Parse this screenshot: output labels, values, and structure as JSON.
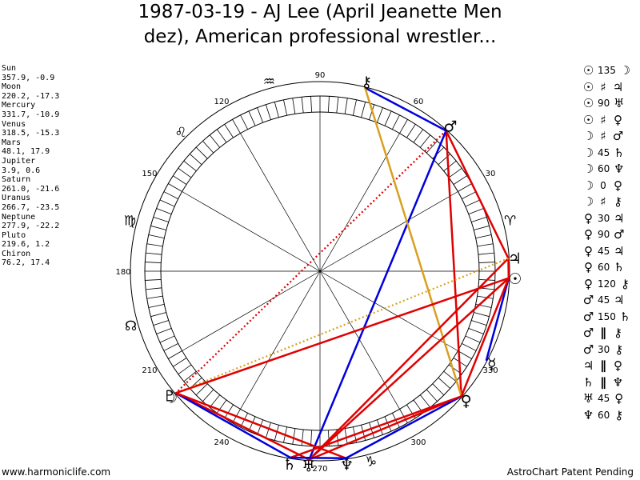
{
  "header": {
    "title_line1": "1987-03-19 - AJ Lee (April Jeanette Men",
    "title_line2": "dez), American professional wrestler..."
  },
  "planets": [
    {
      "name": "Sun",
      "coords": "357.9, -0.9",
      "glyph": "☉",
      "lon": 357.9
    },
    {
      "name": "Moon",
      "coords": "220.2, -17.3",
      "glyph": "☽",
      "lon": 220.2
    },
    {
      "name": "Mercury",
      "coords": "331.7, -10.9",
      "glyph": "☿",
      "lon": 331.7
    },
    {
      "name": "Venus",
      "coords": "318.5, -15.3",
      "glyph": "♀",
      "lon": 318.5
    },
    {
      "name": "Mars",
      "coords": "48.1, 17.9",
      "glyph": "♂",
      "lon": 48.1
    },
    {
      "name": "Jupiter",
      "coords": "3.9, 0.6",
      "glyph": "♃",
      "lon": 3.9
    },
    {
      "name": "Saturn",
      "coords": "261.0, -21.6",
      "glyph": "♄",
      "lon": 261.0
    },
    {
      "name": "Uranus",
      "coords": "266.7, -23.5",
      "glyph": "♅",
      "lon": 266.7
    },
    {
      "name": "Neptune",
      "coords": "277.9, -22.2",
      "glyph": "♆",
      "lon": 277.9
    },
    {
      "name": "Pluto",
      "coords": "219.6, 1.2",
      "glyph": "♇",
      "lon": 219.6
    },
    {
      "name": "Chiron",
      "coords": "76.2, 17.4",
      "glyph": "⚷",
      "lon": 76.2
    }
  ],
  "degree_labels": [
    "90",
    "60",
    "30",
    "180",
    "120",
    "150",
    "210",
    "240",
    "270",
    "300",
    "330"
  ],
  "zodiac_signs": [
    {
      "glyph": "♈",
      "lon": 15
    },
    {
      "glyph": "♌",
      "lon": 135
    },
    {
      "glyph": "♍",
      "lon": 165
    },
    {
      "glyph": "♒",
      "lon": 105
    },
    {
      "glyph": "☊",
      "lon": 196
    },
    {
      "glyph": "♑",
      "lon": 285
    }
  ],
  "aspects": [
    {
      "p1": "☉",
      "aspect": "135",
      "p2": "☽"
    },
    {
      "p1": "☉",
      "aspect": "♯",
      "p2": "♃"
    },
    {
      "p1": "☉",
      "aspect": "90",
      "p2": "♅"
    },
    {
      "p1": "☉",
      "aspect": "♯",
      "p2": "♀"
    },
    {
      "p1": "☽",
      "aspect": "♯",
      "p2": "♂"
    },
    {
      "p1": "☽",
      "aspect": "45",
      "p2": "♄"
    },
    {
      "p1": "☽",
      "aspect": "60",
      "p2": "♆"
    },
    {
      "p1": "☽",
      "aspect": "0",
      "p2": "♀"
    },
    {
      "p1": "☽",
      "aspect": "♯",
      "p2": "⚷"
    },
    {
      "p1": "♀",
      "aspect": "30",
      "p2": "♃"
    },
    {
      "p1": "♀",
      "aspect": "90",
      "p2": "♂"
    },
    {
      "p1": "♀",
      "aspect": "45",
      "p2": "♃"
    },
    {
      "p1": "♀",
      "aspect": "60",
      "p2": "♄"
    },
    {
      "p1": "♀",
      "aspect": "120",
      "p2": "⚷"
    },
    {
      "p1": "♂",
      "aspect": "45",
      "p2": "♃"
    },
    {
      "p1": "♂",
      "aspect": "150",
      "p2": "♄"
    },
    {
      "p1": "♂",
      "aspect": "∥",
      "p2": "⚷"
    },
    {
      "p1": "♂",
      "aspect": "30",
      "p2": "⚷"
    },
    {
      "p1": "♃",
      "aspect": "∥",
      "p2": "♀"
    },
    {
      "p1": "♄",
      "aspect": "∥",
      "p2": "♆"
    },
    {
      "p1": "♅",
      "aspect": "45",
      "p2": "♀"
    },
    {
      "p1": "♆",
      "aspect": "60",
      "p2": "⚷"
    }
  ],
  "footer": {
    "left": "www.harmoniclife.com",
    "right": "AstroChart Patent Pending"
  },
  "colors": {
    "red": "#e00000",
    "blue": "#0000dd",
    "gold": "#d8a020",
    "hatch": "#000000"
  },
  "chart_data": {
    "type": "astrological-wheel",
    "title": "1987-03-19 - AJ Lee (April Jeanette Mendez), American professional wrestler...",
    "points": [
      {
        "name": "Sun",
        "lon": 357.9,
        "lat": -0.9
      },
      {
        "name": "Moon",
        "lon": 220.2,
        "lat": -17.3
      },
      {
        "name": "Mercury",
        "lon": 331.7,
        "lat": -10.9
      },
      {
        "name": "Venus",
        "lon": 318.5,
        "lat": -15.3
      },
      {
        "name": "Mars",
        "lon": 48.1,
        "lat": 17.9
      },
      {
        "name": "Jupiter",
        "lon": 3.9,
        "lat": 0.6
      },
      {
        "name": "Saturn",
        "lon": 261.0,
        "lat": -21.6
      },
      {
        "name": "Uranus",
        "lon": 266.7,
        "lat": -23.5
      },
      {
        "name": "Neptune",
        "lon": 277.9,
        "lat": -22.2
      },
      {
        "name": "Pluto",
        "lon": 219.6,
        "lat": 1.2
      },
      {
        "name": "Chiron",
        "lon": 76.2,
        "lat": 17.4
      }
    ],
    "aspect_lines": [
      {
        "from": 48.1,
        "to": 318.5,
        "color": "red",
        "style": "solid"
      },
      {
        "from": 48.1,
        "to": 3.9,
        "color": "red",
        "style": "solid"
      },
      {
        "from": 48.1,
        "to": 266.7,
        "color": "blue",
        "style": "solid"
      },
      {
        "from": 48.1,
        "to": 220.2,
        "color": "red",
        "style": "dotted"
      },
      {
        "from": 76.2,
        "to": 48.1,
        "color": "blue",
        "style": "solid"
      },
      {
        "from": 76.2,
        "to": 318.5,
        "color": "gold",
        "style": "solid"
      },
      {
        "from": 3.9,
        "to": 357.9,
        "color": "red",
        "style": "solid"
      },
      {
        "from": 3.9,
        "to": 266.7,
        "color": "red",
        "style": "solid"
      },
      {
        "from": 3.9,
        "to": 220.2,
        "color": "gold",
        "style": "dotted"
      },
      {
        "from": 357.9,
        "to": 220.2,
        "color": "red",
        "style": "solid"
      },
      {
        "from": 357.9,
        "to": 331.7,
        "color": "blue",
        "style": "solid"
      },
      {
        "from": 357.9,
        "to": 318.5,
        "color": "red",
        "style": "solid"
      },
      {
        "from": 357.9,
        "to": 266.7,
        "color": "red",
        "style": "solid"
      },
      {
        "from": 220.2,
        "to": 266.7,
        "color": "red",
        "style": "solid"
      },
      {
        "from": 220.2,
        "to": 261.0,
        "color": "blue",
        "style": "solid"
      },
      {
        "from": 220.2,
        "to": 277.9,
        "color": "red",
        "style": "solid"
      },
      {
        "from": 318.5,
        "to": 266.7,
        "color": "red",
        "style": "solid"
      },
      {
        "from": 318.5,
        "to": 277.9,
        "color": "blue",
        "style": "solid"
      },
      {
        "from": 318.5,
        "to": 261.0,
        "color": "red",
        "style": "solid"
      },
      {
        "from": 261.0,
        "to": 277.9,
        "color": "blue",
        "style": "solid"
      }
    ]
  }
}
